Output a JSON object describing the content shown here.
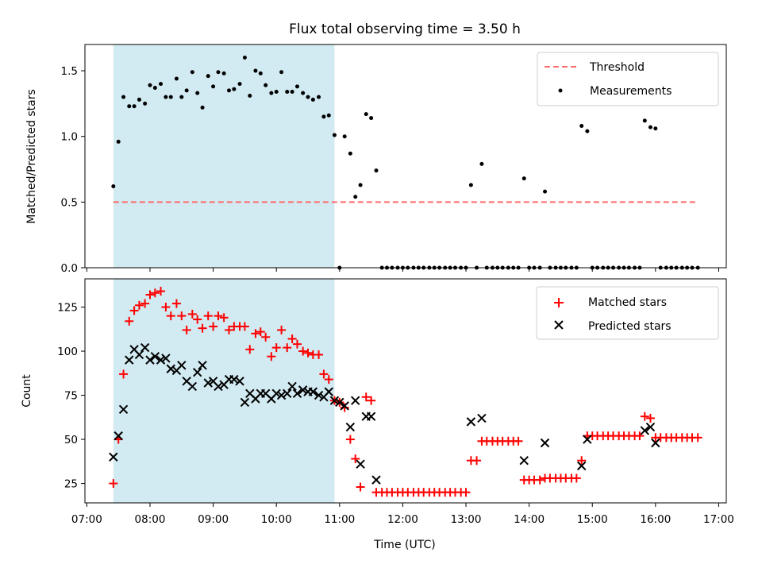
{
  "chart_data": {
    "title": "Flux total observing time = 3.50 h",
    "xlabel": "Time (UTC)",
    "x_ticks": [
      "07:00",
      "08:00",
      "09:00",
      "10:00",
      "11:00",
      "12:00",
      "13:00",
      "14:00",
      "15:00",
      "16:00",
      "17:00"
    ],
    "x_range_hours": [
      6.97,
      17.12
    ],
    "shaded_interval_hours": [
      7.42,
      10.92
    ],
    "colors": {
      "shade": "#add8e6",
      "threshold": "#ff6b6b",
      "matched": "#ff0000",
      "predicted": "#000000",
      "measurement": "#000000"
    },
    "panels": [
      {
        "type": "scatter",
        "ylabel": "Matched/Predicted stars",
        "ylim": [
          0,
          1.7
        ],
        "y_ticks": [
          "0.0",
          "0.5",
          "1.0",
          "1.5"
        ],
        "y_tick_values": [
          0,
          0.5,
          1.0,
          1.5
        ],
        "threshold": {
          "label": "Threshold",
          "value": 0.5,
          "x_start": 7.42,
          "x_end": 16.67
        },
        "legend": [
          "Threshold",
          "Measurements"
        ],
        "measurements": {
          "x": [
            7.42,
            7.5,
            7.58,
            7.67,
            7.75,
            7.83,
            7.92,
            8.0,
            8.08,
            8.17,
            8.25,
            8.33,
            8.42,
            8.5,
            8.58,
            8.67,
            8.75,
            8.83,
            8.92,
            9.0,
            9.08,
            9.17,
            9.25,
            9.33,
            9.42,
            9.5,
            9.58,
            9.67,
            9.75,
            9.83,
            9.92,
            10.0,
            10.08,
            10.17,
            10.25,
            10.33,
            10.42,
            10.5,
            10.58,
            10.67,
            10.75,
            10.83,
            10.92,
            11.0,
            11.08,
            11.17,
            11.25,
            11.33,
            11.42,
            11.5,
            11.58,
            11.67,
            11.75,
            11.83,
            11.92,
            12.0,
            12.08,
            12.17,
            12.25,
            12.33,
            12.42,
            12.5,
            12.58,
            12.67,
            12.75,
            12.83,
            12.92,
            13.0,
            13.08,
            13.17,
            13.25,
            13.33,
            13.42,
            13.5,
            13.58,
            13.67,
            13.75,
            13.83,
            13.92,
            14.0,
            14.08,
            14.17,
            14.25,
            14.33,
            14.42,
            14.5,
            14.58,
            14.67,
            14.75,
            14.83,
            14.92,
            15.0,
            15.08,
            15.17,
            15.25,
            15.33,
            15.42,
            15.5,
            15.58,
            15.67,
            15.75,
            15.83,
            15.92,
            16.0,
            16.08,
            16.17,
            16.25,
            16.33,
            16.42,
            16.5,
            16.58,
            16.67
          ],
          "y": [
            0.62,
            0.96,
            1.3,
            1.23,
            1.23,
            1.28,
            1.25,
            1.39,
            1.37,
            1.4,
            1.3,
            1.3,
            1.44,
            1.3,
            1.35,
            1.49,
            1.33,
            1.22,
            1.46,
            1.38,
            1.49,
            1.48,
            1.35,
            1.36,
            1.4,
            1.6,
            1.31,
            1.5,
            1.48,
            1.39,
            1.33,
            1.34,
            1.49,
            1.34,
            1.34,
            1.38,
            1.33,
            1.3,
            1.28,
            1.3,
            1.15,
            1.16,
            1.01,
            0.0,
            1.0,
            0.87,
            0.54,
            0.63,
            1.17,
            1.14,
            0.74,
            0.0,
            0.0,
            0.0,
            0.0,
            0.0,
            0.0,
            0.0,
            0.0,
            0.0,
            0.0,
            0.0,
            0.0,
            0.0,
            0.0,
            0.0,
            0.0,
            0.0,
            0.63,
            0.0,
            0.79,
            0.0,
            0.0,
            0.0,
            0.0,
            0.0,
            0.0,
            0.0,
            0.68,
            0.0,
            0.0,
            0.0,
            0.58,
            0.0,
            0.0,
            0.0,
            0.0,
            0.0,
            0.0,
            1.08,
            1.04,
            0.0,
            0.0,
            0.0,
            0.0,
            0.0,
            0.0,
            0.0,
            0.0,
            0.0,
            0.0,
            1.12,
            1.07,
            1.06,
            0.0,
            0.0,
            0.0,
            0.0,
            0.0,
            0.0,
            0.0,
            0.0
          ]
        }
      },
      {
        "type": "scatter",
        "ylabel": "Count",
        "ylim": [
          14,
          141
        ],
        "y_ticks": [
          "25",
          "50",
          "75",
          "100",
          "125"
        ],
        "y_tick_values": [
          25,
          50,
          75,
          100,
          125
        ],
        "legend": [
          "Matched stars",
          "Predicted stars"
        ],
        "matched": {
          "x": [
            7.42,
            7.5,
            7.58,
            7.67,
            7.75,
            7.83,
            7.92,
            8.0,
            8.08,
            8.17,
            8.25,
            8.33,
            8.42,
            8.5,
            8.58,
            8.67,
            8.75,
            8.83,
            8.92,
            9.0,
            9.08,
            9.17,
            9.25,
            9.33,
            9.42,
            9.5,
            9.58,
            9.67,
            9.75,
            9.83,
            9.92,
            10.0,
            10.08,
            10.17,
            10.25,
            10.33,
            10.42,
            10.5,
            10.58,
            10.67,
            10.75,
            10.83,
            10.92,
            11.0,
            11.08,
            11.17,
            11.25,
            11.33,
            11.42,
            11.5,
            11.58,
            11.67,
            11.75,
            11.83,
            11.92,
            12.0,
            12.08,
            12.17,
            12.25,
            12.33,
            12.42,
            12.5,
            12.58,
            12.67,
            12.75,
            12.83,
            12.92,
            13.0,
            13.08,
            13.17,
            13.25,
            13.33,
            13.42,
            13.5,
            13.58,
            13.67,
            13.75,
            13.83,
            13.92,
            14.0,
            14.08,
            14.17,
            14.25,
            14.33,
            14.42,
            14.5,
            14.58,
            14.67,
            14.75,
            14.83,
            14.92,
            15.0,
            15.08,
            15.17,
            15.25,
            15.33,
            15.42,
            15.5,
            15.58,
            15.67,
            15.75,
            15.83,
            15.92,
            16.0,
            16.08,
            16.17,
            16.25,
            16.33,
            16.42,
            16.5,
            16.58,
            16.67
          ],
          "y": [
            25,
            50,
            87,
            117,
            123,
            126,
            127,
            132,
            133,
            134,
            125,
            120,
            127,
            120,
            112,
            121,
            118,
            113,
            120,
            114,
            120,
            119,
            112,
            114,
            114,
            114,
            101,
            110,
            111,
            108,
            97,
            102,
            112,
            102,
            107,
            104,
            100,
            99,
            98,
            98,
            87,
            84,
            72,
            71,
            68,
            50,
            39,
            23,
            74,
            72,
            20,
            20,
            20,
            20,
            20,
            20,
            20,
            20,
            20,
            20,
            20,
            20,
            20,
            20,
            20,
            20,
            20,
            20,
            38,
            38,
            49,
            49,
            49,
            49,
            49,
            49,
            49,
            49,
            27,
            27,
            27,
            27,
            28,
            28,
            28,
            28,
            28,
            28,
            28,
            38,
            52,
            52,
            52,
            52,
            52,
            52,
            52,
            52,
            52,
            52,
            52,
            63,
            62,
            51,
            51,
            51,
            51,
            51,
            51,
            51,
            51,
            51
          ]
        },
        "predicted": {
          "x": [
            7.42,
            7.5,
            7.58,
            7.67,
            7.75,
            7.83,
            7.92,
            8.0,
            8.08,
            8.17,
            8.25,
            8.33,
            8.42,
            8.5,
            8.58,
            8.67,
            8.75,
            8.83,
            8.92,
            9.0,
            9.08,
            9.17,
            9.25,
            9.33,
            9.42,
            9.5,
            9.58,
            9.67,
            9.75,
            9.83,
            9.92,
            10.0,
            10.08,
            10.17,
            10.25,
            10.33,
            10.42,
            10.5,
            10.58,
            10.67,
            10.75,
            10.83,
            10.92,
            11.0,
            11.08,
            11.17,
            11.25,
            11.33,
            11.42,
            11.5,
            11.58,
            13.08,
            13.25,
            13.92,
            14.25,
            14.83,
            14.92,
            15.83,
            15.92,
            16.0
          ],
          "y": [
            40,
            52,
            67,
            95,
            101,
            98,
            102,
            95,
            97,
            95,
            96,
            90,
            89,
            92,
            83,
            80,
            88,
            92,
            82,
            83,
            80,
            81,
            84,
            84,
            83,
            71,
            76,
            73,
            76,
            76,
            73,
            76,
            75,
            76,
            80,
            76,
            78,
            77,
            77,
            75,
            74,
            77,
            72,
            71,
            69,
            57,
            72,
            36,
            63,
            63,
            27,
            60,
            62,
            38,
            48,
            35,
            50,
            55,
            57,
            48
          ]
        }
      }
    ]
  }
}
